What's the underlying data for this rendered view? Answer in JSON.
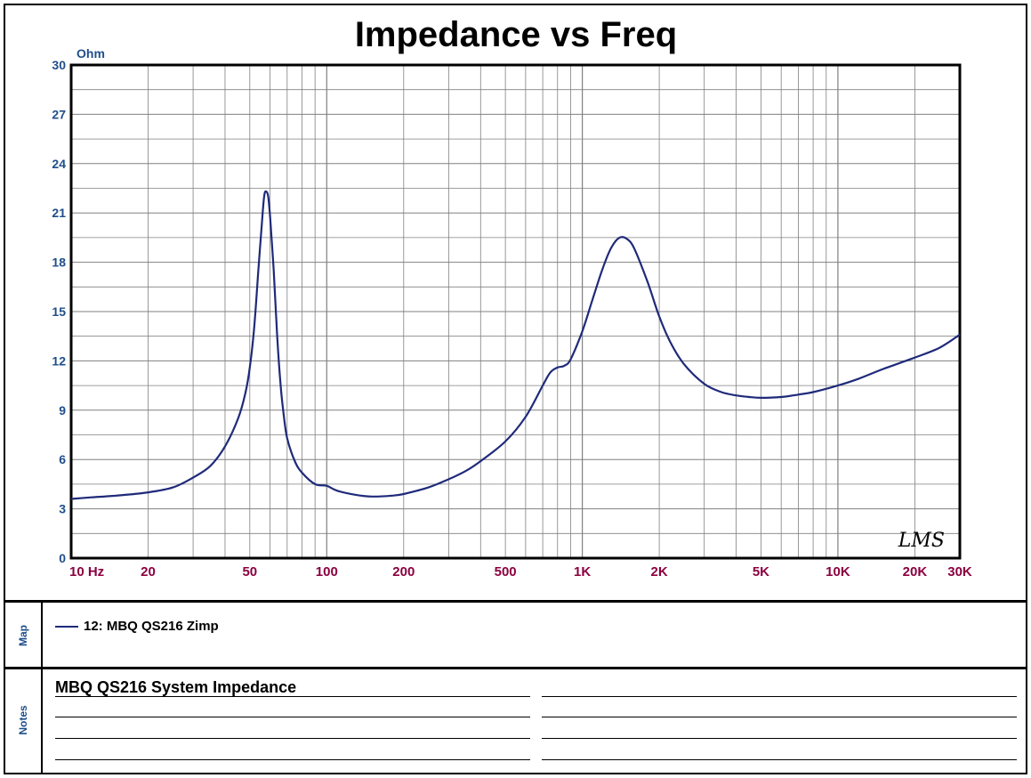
{
  "title": "Impedance vs Freq",
  "y_unit": "Ohm",
  "watermark": "LMS",
  "colors": {
    "curve": "#1f2a7a",
    "y_labels": "#1f4e8a",
    "x_labels": "#8b0040",
    "grid": "#808080"
  },
  "legend": {
    "section_label": "Map",
    "items": [
      {
        "label": "12: MBQ QS216 Zimp"
      }
    ]
  },
  "notes": {
    "section_label": "Notes",
    "text": "MBQ QS216 System Impedance"
  },
  "chart_data": {
    "type": "line",
    "title": "Impedance vs Freq",
    "xlabel": "",
    "ylabel": "Ohm",
    "x_scale": "log",
    "xlim": [
      10,
      30000
    ],
    "ylim": [
      0,
      30
    ],
    "grid": true,
    "y_ticks": [
      {
        "v": 0,
        "label": "0"
      },
      {
        "v": 3,
        "label": "3"
      },
      {
        "v": 6,
        "label": "6"
      },
      {
        "v": 9,
        "label": "9"
      },
      {
        "v": 12,
        "label": "12"
      },
      {
        "v": 15,
        "label": "15"
      },
      {
        "v": 18,
        "label": "18"
      },
      {
        "v": 21,
        "label": "21"
      },
      {
        "v": 24,
        "label": "24"
      },
      {
        "v": 27,
        "label": "27"
      },
      {
        "v": 30,
        "label": "30"
      }
    ],
    "x_ticks": [
      {
        "v": 10,
        "label": "10 Hz"
      },
      {
        "v": 20,
        "label": "20"
      },
      {
        "v": 50,
        "label": "50"
      },
      {
        "v": 100,
        "label": "100"
      },
      {
        "v": 200,
        "label": "200"
      },
      {
        "v": 500,
        "label": "500"
      },
      {
        "v": 1000,
        "label": "1K"
      },
      {
        "v": 2000,
        "label": "2K"
      },
      {
        "v": 5000,
        "label": "5K"
      },
      {
        "v": 10000,
        "label": "10K"
      },
      {
        "v": 20000,
        "label": "20K"
      },
      {
        "v": 30000,
        "label": "30K"
      }
    ],
    "series": [
      {
        "name": "12: MBQ QS216 Zimp",
        "x": [
          10,
          12,
          15,
          20,
          25,
          30,
          35,
          40,
          45,
          48,
          50,
          52,
          54,
          56,
          57,
          58,
          59,
          60,
          62,
          64,
          66,
          68,
          70,
          75,
          80,
          90,
          100,
          110,
          130,
          150,
          180,
          200,
          250,
          300,
          350,
          400,
          500,
          600,
          700,
          750,
          800,
          850,
          900,
          1000,
          1100,
          1200,
          1300,
          1400,
          1500,
          1600,
          1800,
          2000,
          2200,
          2500,
          3000,
          3500,
          4000,
          4500,
          5000,
          6000,
          7000,
          8000,
          10000,
          12000,
          15000,
          20000,
          25000,
          30000
        ],
        "values": [
          3.6,
          3.7,
          3.8,
          4.0,
          4.3,
          4.9,
          5.6,
          6.8,
          8.5,
          10.0,
          11.6,
          14.0,
          17.5,
          20.8,
          22.1,
          22.3,
          22.0,
          20.8,
          17.5,
          13.5,
          10.5,
          8.6,
          7.3,
          5.9,
          5.2,
          4.5,
          4.4,
          4.1,
          3.85,
          3.75,
          3.8,
          3.9,
          4.3,
          4.8,
          5.3,
          5.9,
          7.1,
          8.6,
          10.5,
          11.3,
          11.6,
          11.7,
          12.1,
          13.8,
          15.8,
          17.6,
          18.9,
          19.5,
          19.4,
          18.8,
          16.8,
          14.7,
          13.2,
          11.8,
          10.6,
          10.1,
          9.9,
          9.8,
          9.75,
          9.8,
          9.95,
          10.1,
          10.5,
          10.9,
          11.5,
          12.2,
          12.8,
          13.6
        ]
      }
    ]
  }
}
